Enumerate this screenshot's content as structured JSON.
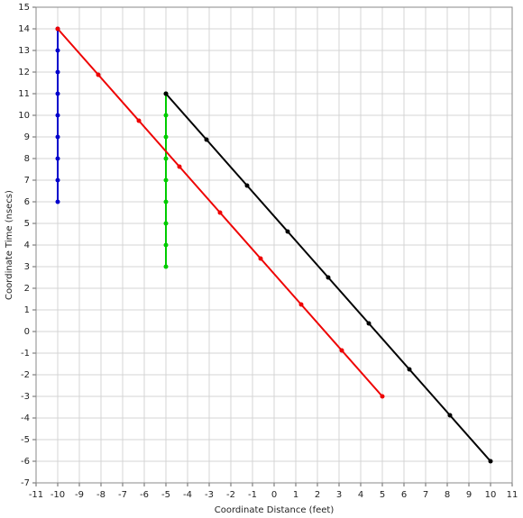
{
  "chart_data": {
    "type": "line",
    "x_label": "Coordinate Distance (feet)",
    "y_label": "Coordinate Time (nsecs)",
    "xlim": [
      -11,
      11
    ],
    "xticks": [
      -11,
      -10,
      -9,
      -8,
      -7,
      -6,
      -5,
      -4,
      -3,
      -2,
      -1,
      0,
      1,
      2,
      3,
      4,
      5,
      6,
      7,
      8,
      9,
      10,
      11
    ],
    "ylim": [
      -7,
      15
    ],
    "yticks": [
      -7,
      -6,
      -5,
      -4,
      -3,
      -2,
      -1,
      0,
      1,
      2,
      3,
      4,
      5,
      6,
      7,
      8,
      9,
      10,
      11,
      12,
      13,
      14,
      15
    ],
    "grid": true,
    "series": [
      {
        "color": "#0000cc",
        "x": [
          -10,
          -10,
          -10,
          -10,
          -10,
          -10,
          -10,
          -10,
          -10
        ],
        "values": [
          6,
          7,
          8,
          9,
          10,
          11,
          12,
          13,
          14
        ]
      },
      {
        "color": "#00cc00",
        "x": [
          -5,
          -5,
          -5,
          -5,
          -5,
          -5,
          -5,
          -5,
          -5
        ],
        "values": [
          3,
          4,
          5,
          6,
          7,
          8,
          9,
          10,
          11
        ]
      },
      {
        "color": "#ee0000",
        "x": [
          -10,
          -8.125,
          -6.25,
          -4.375,
          -2.5,
          -0.625,
          1.25,
          3.125,
          5
        ],
        "values": [
          14,
          11.875,
          9.75,
          7.625,
          5.5,
          3.375,
          1.25,
          -0.875,
          -3
        ]
      },
      {
        "color": "#000000",
        "x": [
          -5,
          -3.125,
          -1.25,
          0.625,
          2.5,
          4.375,
          6.25,
          8.125,
          10
        ],
        "values": [
          11,
          8.875,
          6.75,
          4.625,
          2.5,
          0.375,
          -1.75,
          -3.875,
          -6
        ]
      }
    ]
  }
}
